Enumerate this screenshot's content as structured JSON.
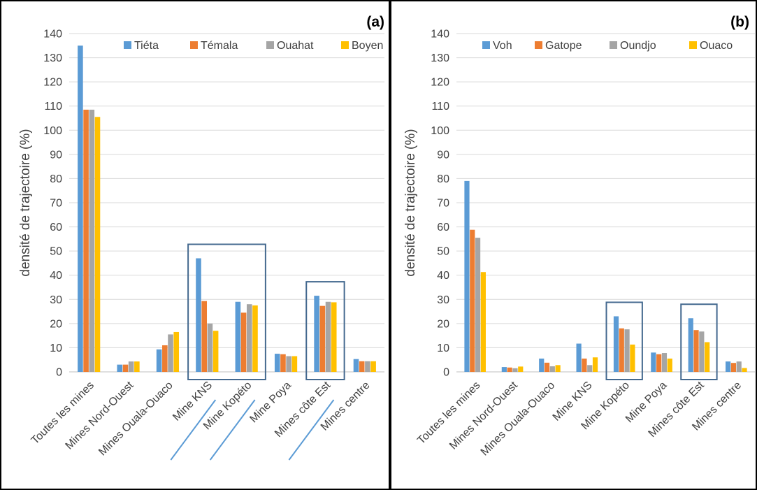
{
  "chart_data": [
    {
      "type": "bar",
      "panel_label": "(a)",
      "ylabel": "densité de trajectoire (%)",
      "ylim": [
        0,
        140
      ],
      "ytick_step": 10,
      "grid": true,
      "legend_position": "top-right",
      "categories": [
        "Toutes les mines",
        "Mines Nord-Ouest",
        "Mines Ouala-Ouaco",
        "Mine KNS",
        "Mine Kopéto",
        "Mine Poya",
        "Mines côte Est",
        "Mines centre"
      ],
      "series": [
        {
          "name": "Tiéta",
          "color": "#5b9bd5",
          "values": [
            135,
            3,
            9.3,
            47,
            29,
            7.5,
            31.5,
            5.3
          ]
        },
        {
          "name": "Témala",
          "color": "#ed7d31",
          "values": [
            108.5,
            3,
            11,
            29.3,
            24.5,
            7.3,
            27.3,
            4.4
          ]
        },
        {
          "name": "Ouahat",
          "color": "#a5a5a5",
          "values": [
            108.5,
            4.3,
            15.5,
            20,
            28,
            6.5,
            29,
            4.4
          ]
        },
        {
          "name": "Boyen",
          "color": "#ffc000",
          "values": [
            105.5,
            4.3,
            16.5,
            17,
            27.5,
            6.5,
            28.8,
            4.4
          ]
        }
      ],
      "highlight_boxes": [
        {
          "from": 3,
          "to": 4
        },
        {
          "from": 6,
          "to": 6
        }
      ],
      "underlined_categories": [
        3,
        4,
        6
      ]
    },
    {
      "type": "bar",
      "panel_label": "(b)",
      "ylabel": "densité de trajectoire (%)",
      "ylim": [
        0,
        140
      ],
      "ytick_step": 10,
      "grid": true,
      "legend_position": "top",
      "categories": [
        "Toutes les mines",
        "Mines Nord-Ouest",
        "Mines Ouala-Ouaco",
        "Mine KNS",
        "Mine Kopéto",
        "Mine Poya",
        "Mines côte Est",
        "Mines centre"
      ],
      "series": [
        {
          "name": "Voh",
          "color": "#5b9bd5",
          "values": [
            79,
            2,
            5.5,
            11.7,
            23,
            8,
            22.2,
            4.3
          ]
        },
        {
          "name": "Gatope",
          "color": "#ed7d31",
          "values": [
            58.8,
            1.8,
            3.8,
            5.5,
            18,
            7.3,
            17.3,
            3.7
          ]
        },
        {
          "name": "Oundjo",
          "color": "#a5a5a5",
          "values": [
            55.5,
            1.5,
            2.3,
            2.8,
            17.6,
            7.8,
            16.7,
            4.3
          ]
        },
        {
          "name": "Ouaco",
          "color": "#ffc000",
          "values": [
            41.3,
            2.2,
            2.8,
            6,
            11.3,
            5.5,
            12.3,
            1.6
          ]
        }
      ],
      "highlight_boxes": [
        {
          "from": 4,
          "to": 4
        },
        {
          "from": 6,
          "to": 6
        }
      ],
      "underlined_categories": []
    }
  ]
}
